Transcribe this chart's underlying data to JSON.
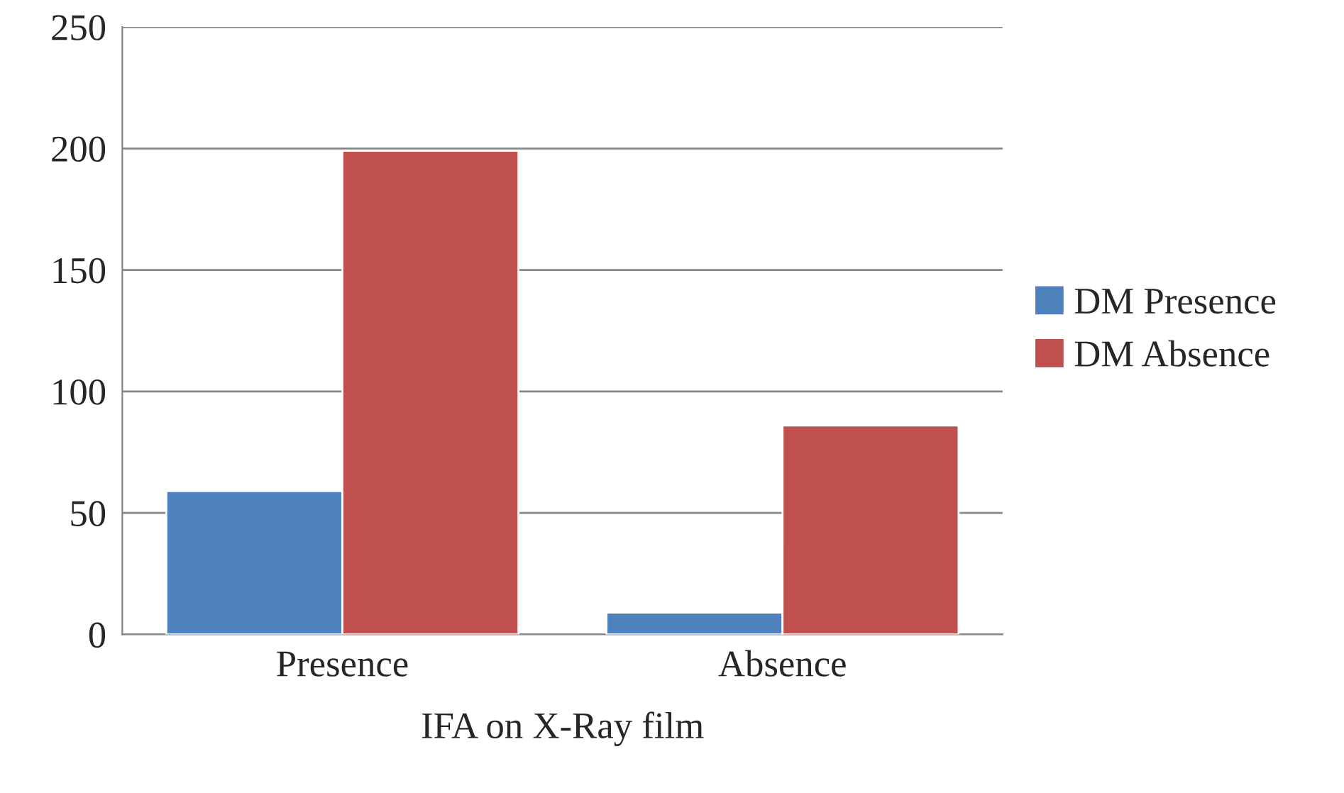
{
  "chart_data": {
    "type": "bar",
    "xlabel": "IFA on X-Ray film",
    "categories": [
      "Presence",
      "Absence"
    ],
    "series": [
      {
        "name": "DM Presence",
        "color": "#4f81bd",
        "values": [
          59,
          9
        ]
      },
      {
        "name": "DM Absence",
        "color": "#c0504d",
        "values": [
          199,
          86
        ]
      }
    ],
    "ylim": [
      0,
      250
    ],
    "yticks": [
      0,
      50,
      100,
      150,
      200,
      250
    ],
    "grid": "y",
    "legend": "right"
  }
}
